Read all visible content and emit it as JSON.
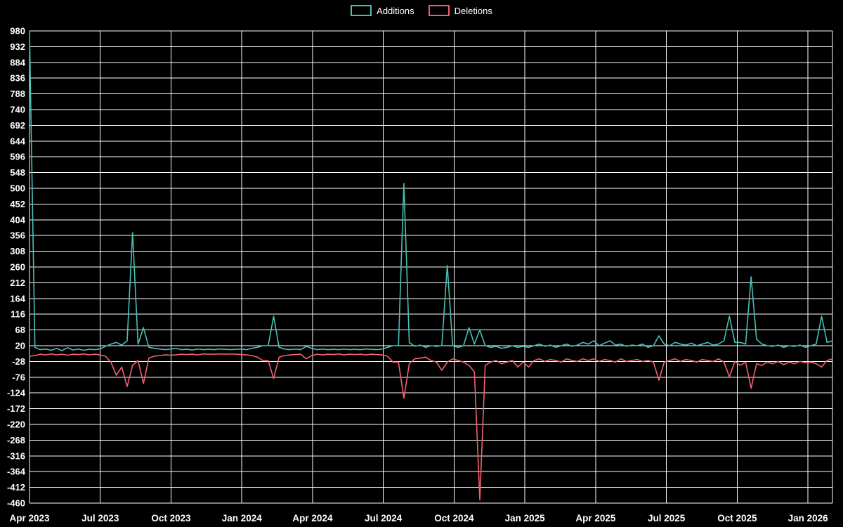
{
  "chart_data": {
    "type": "line",
    "title": "",
    "xlabel": "",
    "ylabel": "",
    "grid": true,
    "legend_position": "top-center",
    "ylim": [
      -460,
      980
    ],
    "yticks": [
      980,
      932,
      884,
      836,
      788,
      740,
      692,
      644,
      596,
      548,
      500,
      452,
      404,
      356,
      308,
      260,
      212,
      164,
      116,
      68,
      20,
      -28,
      -76,
      -124,
      -172,
      -220,
      -268,
      -316,
      -364,
      -412,
      -460
    ],
    "x_unit": "week",
    "xticks": [
      {
        "month": 0,
        "label": "Apr 2023"
      },
      {
        "month": 3,
        "label": "Jul 2023"
      },
      {
        "month": 6,
        "label": "Oct 2023"
      },
      {
        "month": 9,
        "label": "Jan 2024"
      },
      {
        "month": 12,
        "label": "Apr 2024"
      },
      {
        "month": 15,
        "label": "Jul 2024"
      },
      {
        "month": 18,
        "label": "Oct 2024"
      },
      {
        "month": 21,
        "label": "Jan 2025"
      },
      {
        "month": 24,
        "label": "Apr 2025"
      },
      {
        "month": 27,
        "label": "Jul 2025"
      },
      {
        "month": 30,
        "label": "Oct 2025"
      },
      {
        "month": 33,
        "label": "Jan 2026"
      }
    ],
    "colors": {
      "background": "#000000",
      "grid": "#ffffff",
      "text": "#ffffff"
    },
    "series": [
      {
        "name": "Additions",
        "color": "#49c0b6",
        "values": [
          985,
          15,
          8,
          10,
          6,
          12,
          5,
          14,
          7,
          10,
          6,
          9,
          8,
          10,
          18,
          25,
          30,
          22,
          35,
          365,
          25,
          75,
          15,
          12,
          10,
          8,
          10,
          12,
          8,
          9,
          7,
          10,
          8,
          9,
          8,
          10,
          9,
          8,
          9,
          10,
          8,
          12,
          15,
          20,
          20,
          110,
          15,
          10,
          8,
          10,
          8,
          18,
          12,
          8,
          10,
          8,
          9,
          8,
          10,
          8,
          9,
          8,
          10,
          9,
          8,
          10,
          15,
          20,
          20,
          515,
          30,
          18,
          22,
          15,
          20,
          18,
          20,
          265,
          20,
          15,
          20,
          75,
          25,
          68,
          20,
          15,
          18,
          12,
          15,
          20,
          15,
          18,
          15,
          20,
          25,
          18,
          22,
          15,
          20,
          25,
          18,
          22,
          30,
          25,
          35,
          20,
          28,
          35,
          22,
          25,
          18,
          22,
          20,
          25,
          15,
          20,
          50,
          25,
          20,
          30,
          25,
          22,
          28,
          20,
          25,
          30,
          22,
          25,
          35,
          110,
          30,
          30,
          25,
          230,
          40,
          25,
          20,
          18,
          22,
          15,
          20,
          18,
          22,
          15,
          20,
          25,
          110,
          30,
          35
        ]
      },
      {
        "name": "Deletions",
        "color": "#f0616e",
        "values": [
          -12,
          -10,
          -6,
          -8,
          -5,
          -8,
          -6,
          -9,
          -6,
          -7,
          -5,
          -8,
          -6,
          -8,
          -12,
          -30,
          -70,
          -45,
          -105,
          -40,
          -25,
          -95,
          -18,
          -12,
          -10,
          -8,
          -9,
          -8,
          -6,
          -7,
          -6,
          -8,
          -5,
          -6,
          -6,
          -5,
          -6,
          -5,
          -6,
          -7,
          -8,
          -10,
          -15,
          -25,
          -25,
          -80,
          -15,
          -10,
          -8,
          -7,
          -6,
          -20,
          -10,
          -6,
          -8,
          -6,
          -7,
          -5,
          -8,
          -6,
          -7,
          -6,
          -8,
          -6,
          -7,
          -8,
          -12,
          -30,
          -30,
          -140,
          -35,
          -20,
          -18,
          -15,
          -25,
          -30,
          -55,
          -30,
          -20,
          -25,
          -30,
          -40,
          -60,
          -450,
          -40,
          -30,
          -25,
          -35,
          -30,
          -25,
          -45,
          -30,
          -45,
          -25,
          -20,
          -28,
          -22,
          -25,
          -30,
          -20,
          -25,
          -28,
          -20,
          -25,
          -20,
          -28,
          -22,
          -25,
          -30,
          -20,
          -28,
          -25,
          -22,
          -28,
          -25,
          -30,
          -85,
          -30,
          -25,
          -20,
          -28,
          -22,
          -25,
          -30,
          -22,
          -25,
          -28,
          -20,
          -30,
          -75,
          -28,
          -40,
          -30,
          -110,
          -35,
          -40,
          -30,
          -35,
          -28,
          -38,
          -30,
          -35,
          -28,
          -32,
          -30,
          -35,
          -45,
          -25,
          -20
        ]
      }
    ]
  }
}
